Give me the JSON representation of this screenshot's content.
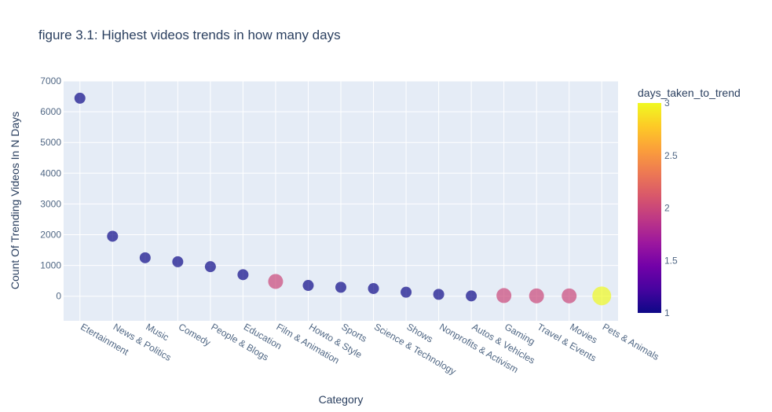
{
  "chart_data": {
    "type": "scatter",
    "title": "figure 3.1: Highest videos trends in how many days",
    "xlabel": "Category",
    "ylabel": "Count Of  Trending Videos In N Days",
    "ylim": [
      -800,
      7000
    ],
    "yticks": [
      0,
      1000,
      2000,
      3000,
      4000,
      5000,
      6000,
      7000
    ],
    "grid": true,
    "categories": [
      "Etertainment",
      "News & Politics",
      "Music",
      "Comedy",
      "People & Blogs",
      "Education",
      "Film & Animation",
      "Howto & Style",
      "Sports",
      "Science & Technology",
      "Shows",
      "Nonprofits & Activism",
      "Autos & Vehicles",
      "Gaming",
      "Travel & Events",
      "Movies",
      "Pets & Animals"
    ],
    "values": [
      6440,
      1950,
      1250,
      1120,
      960,
      700,
      480,
      350,
      290,
      250,
      130,
      60,
      10,
      20,
      10,
      10,
      10
    ],
    "days_taken_to_trend": [
      1,
      1,
      1,
      1,
      1,
      1,
      2,
      1,
      1,
      1,
      1,
      1,
      1,
      2,
      2,
      2,
      3
    ],
    "colorbar": {
      "title": "days_taken_to_trend",
      "range": [
        1,
        3
      ],
      "ticks": [
        "1",
        "1.5",
        "2",
        "2.5",
        "3"
      ],
      "colors": [
        "#0d0887",
        "#46039f",
        "#7201a8",
        "#9c179e",
        "#bd3786",
        "#d8576b",
        "#ed7953",
        "#fb9f3a",
        "#fdca26",
        "#f0f921"
      ]
    },
    "plot_bg": "#e5ecf6",
    "grid_color": "#ffffff"
  }
}
